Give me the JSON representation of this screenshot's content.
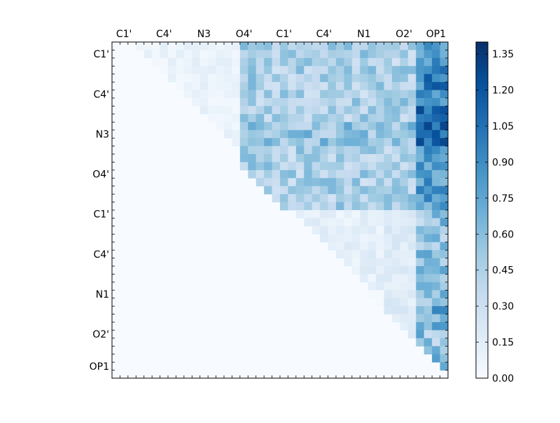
{
  "chart_data": {
    "type": "heatmap",
    "title": "",
    "xlabel": "",
    "ylabel": "",
    "size": 42,
    "x_tick_labels": [
      "C1'",
      "C4'",
      "N3",
      "O4'",
      "C1'",
      "C4'",
      "N1",
      "O2'",
      "OP1"
    ],
    "y_tick_labels": [
      "C1'",
      "C4'",
      "N3",
      "O4'",
      "C1'",
      "C4'",
      "N1",
      "O2'",
      "OP1"
    ],
    "tick_label_index": [
      1,
      6,
      11,
      16,
      21,
      26,
      31,
      36,
      40
    ],
    "colormap": "Blues",
    "colormap_stops": [
      "#f7fbff",
      "#deebf7",
      "#c6dbef",
      "#9ecae1",
      "#6baed6",
      "#4292c6",
      "#2171b5",
      "#08519c",
      "#08306b"
    ],
    "colorbar": {
      "vmin": 0.0,
      "vmax": 1.4,
      "ticks": [
        "0.00",
        "0.15",
        "0.30",
        "0.45",
        "0.60",
        "0.75",
        "0.90",
        "1.05",
        "1.20",
        "1.35"
      ]
    },
    "upper_triangle_only": true,
    "notes": "Upper-triangular distance/correlation matrix (42x42). Lower triangle and diagonal are ~0. Values range 0-1.4; blocks for the first strand (rows 0-20) cols 16-41 are ~0.3-0.7; OP1 columns (38-41) peak ~1.3 near N3 rows."
  }
}
